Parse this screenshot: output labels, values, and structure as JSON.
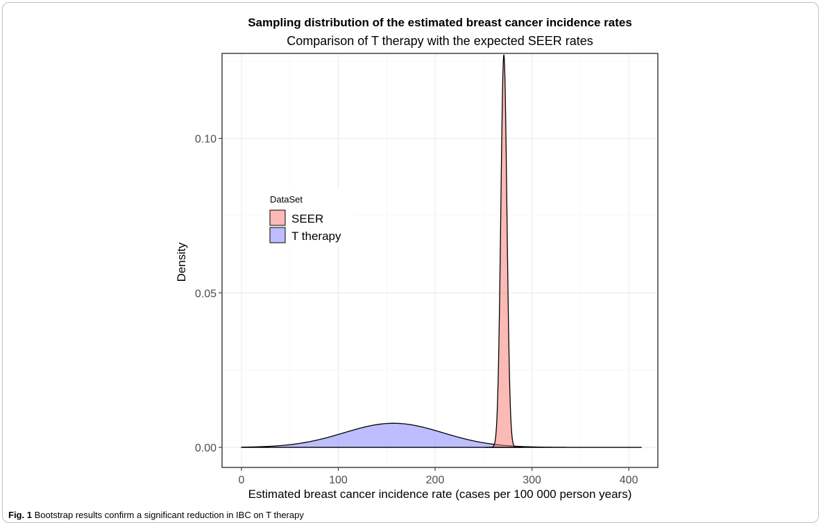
{
  "caption": {
    "label": "Fig. 1",
    "text": "Bootstrap results confirm a significant reduction in IBC on T therapy"
  },
  "chart_data": {
    "type": "area",
    "title": "Sampling distribution of the estimated breast cancer incidence rates",
    "subtitle": "Comparison of T therapy with the expected SEER rates",
    "xlabel": "Estimated breast cancer incidence rate (cases per 100 000 person years)",
    "ylabel": "Density",
    "xlim": [
      -20,
      430
    ],
    "ylim": [
      -0.0065,
      0.1275
    ],
    "x_ticks": [
      0,
      100,
      200,
      300,
      400
    ],
    "y_ticks": [
      0.0,
      0.05,
      0.1
    ],
    "x_tick_labels": [
      "0",
      "100",
      "200",
      "300",
      "400"
    ],
    "y_tick_labels": [
      "0.00",
      "0.05",
      "0.10"
    ],
    "grid": true,
    "legend": {
      "title": "DataSet",
      "position": "left-middle",
      "entries": [
        "SEER",
        "T therapy"
      ]
    },
    "series": [
      {
        "name": "SEER",
        "color": "#f8766d",
        "distribution": "normal",
        "mean": 271,
        "sd": 3.15,
        "peak_density": 0.127
      },
      {
        "name": "T therapy",
        "color": "#7b7bff",
        "distribution": "normal",
        "mean": 157,
        "sd": 51,
        "peak_density": 0.0078,
        "x_range": [
          0,
          413
        ]
      }
    ]
  }
}
